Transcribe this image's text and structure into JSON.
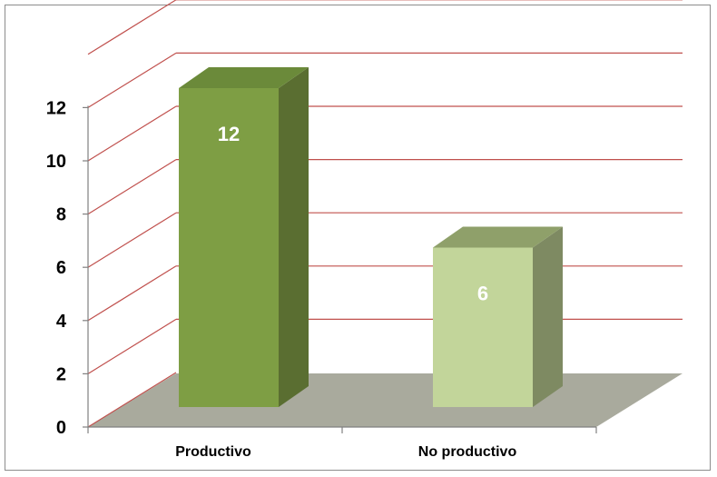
{
  "chart_data": {
    "type": "bar",
    "categories": [
      "Productivo",
      "No productivo"
    ],
    "values": [
      12,
      6
    ],
    "data_labels": [
      "12",
      "6"
    ],
    "title": "",
    "xlabel": "",
    "ylabel": "",
    "ylim": [
      0,
      14
    ],
    "y_ticks": [
      "0",
      "2",
      "4",
      "6",
      "8",
      "10",
      "12"
    ],
    "grid": true,
    "legend": "none",
    "style": "3d-column",
    "colors": {
      "gridline": "#c0504d",
      "floor": "#a9aa9d",
      "bar_front": [
        "#7e9e44",
        "#c2d59a"
      ],
      "bar_side": [
        "#5a6e31",
        "#7e8a62"
      ],
      "bar_top": [
        "#6b8a3a",
        "#8fa06a"
      ],
      "data_label": "#ffffff"
    }
  }
}
